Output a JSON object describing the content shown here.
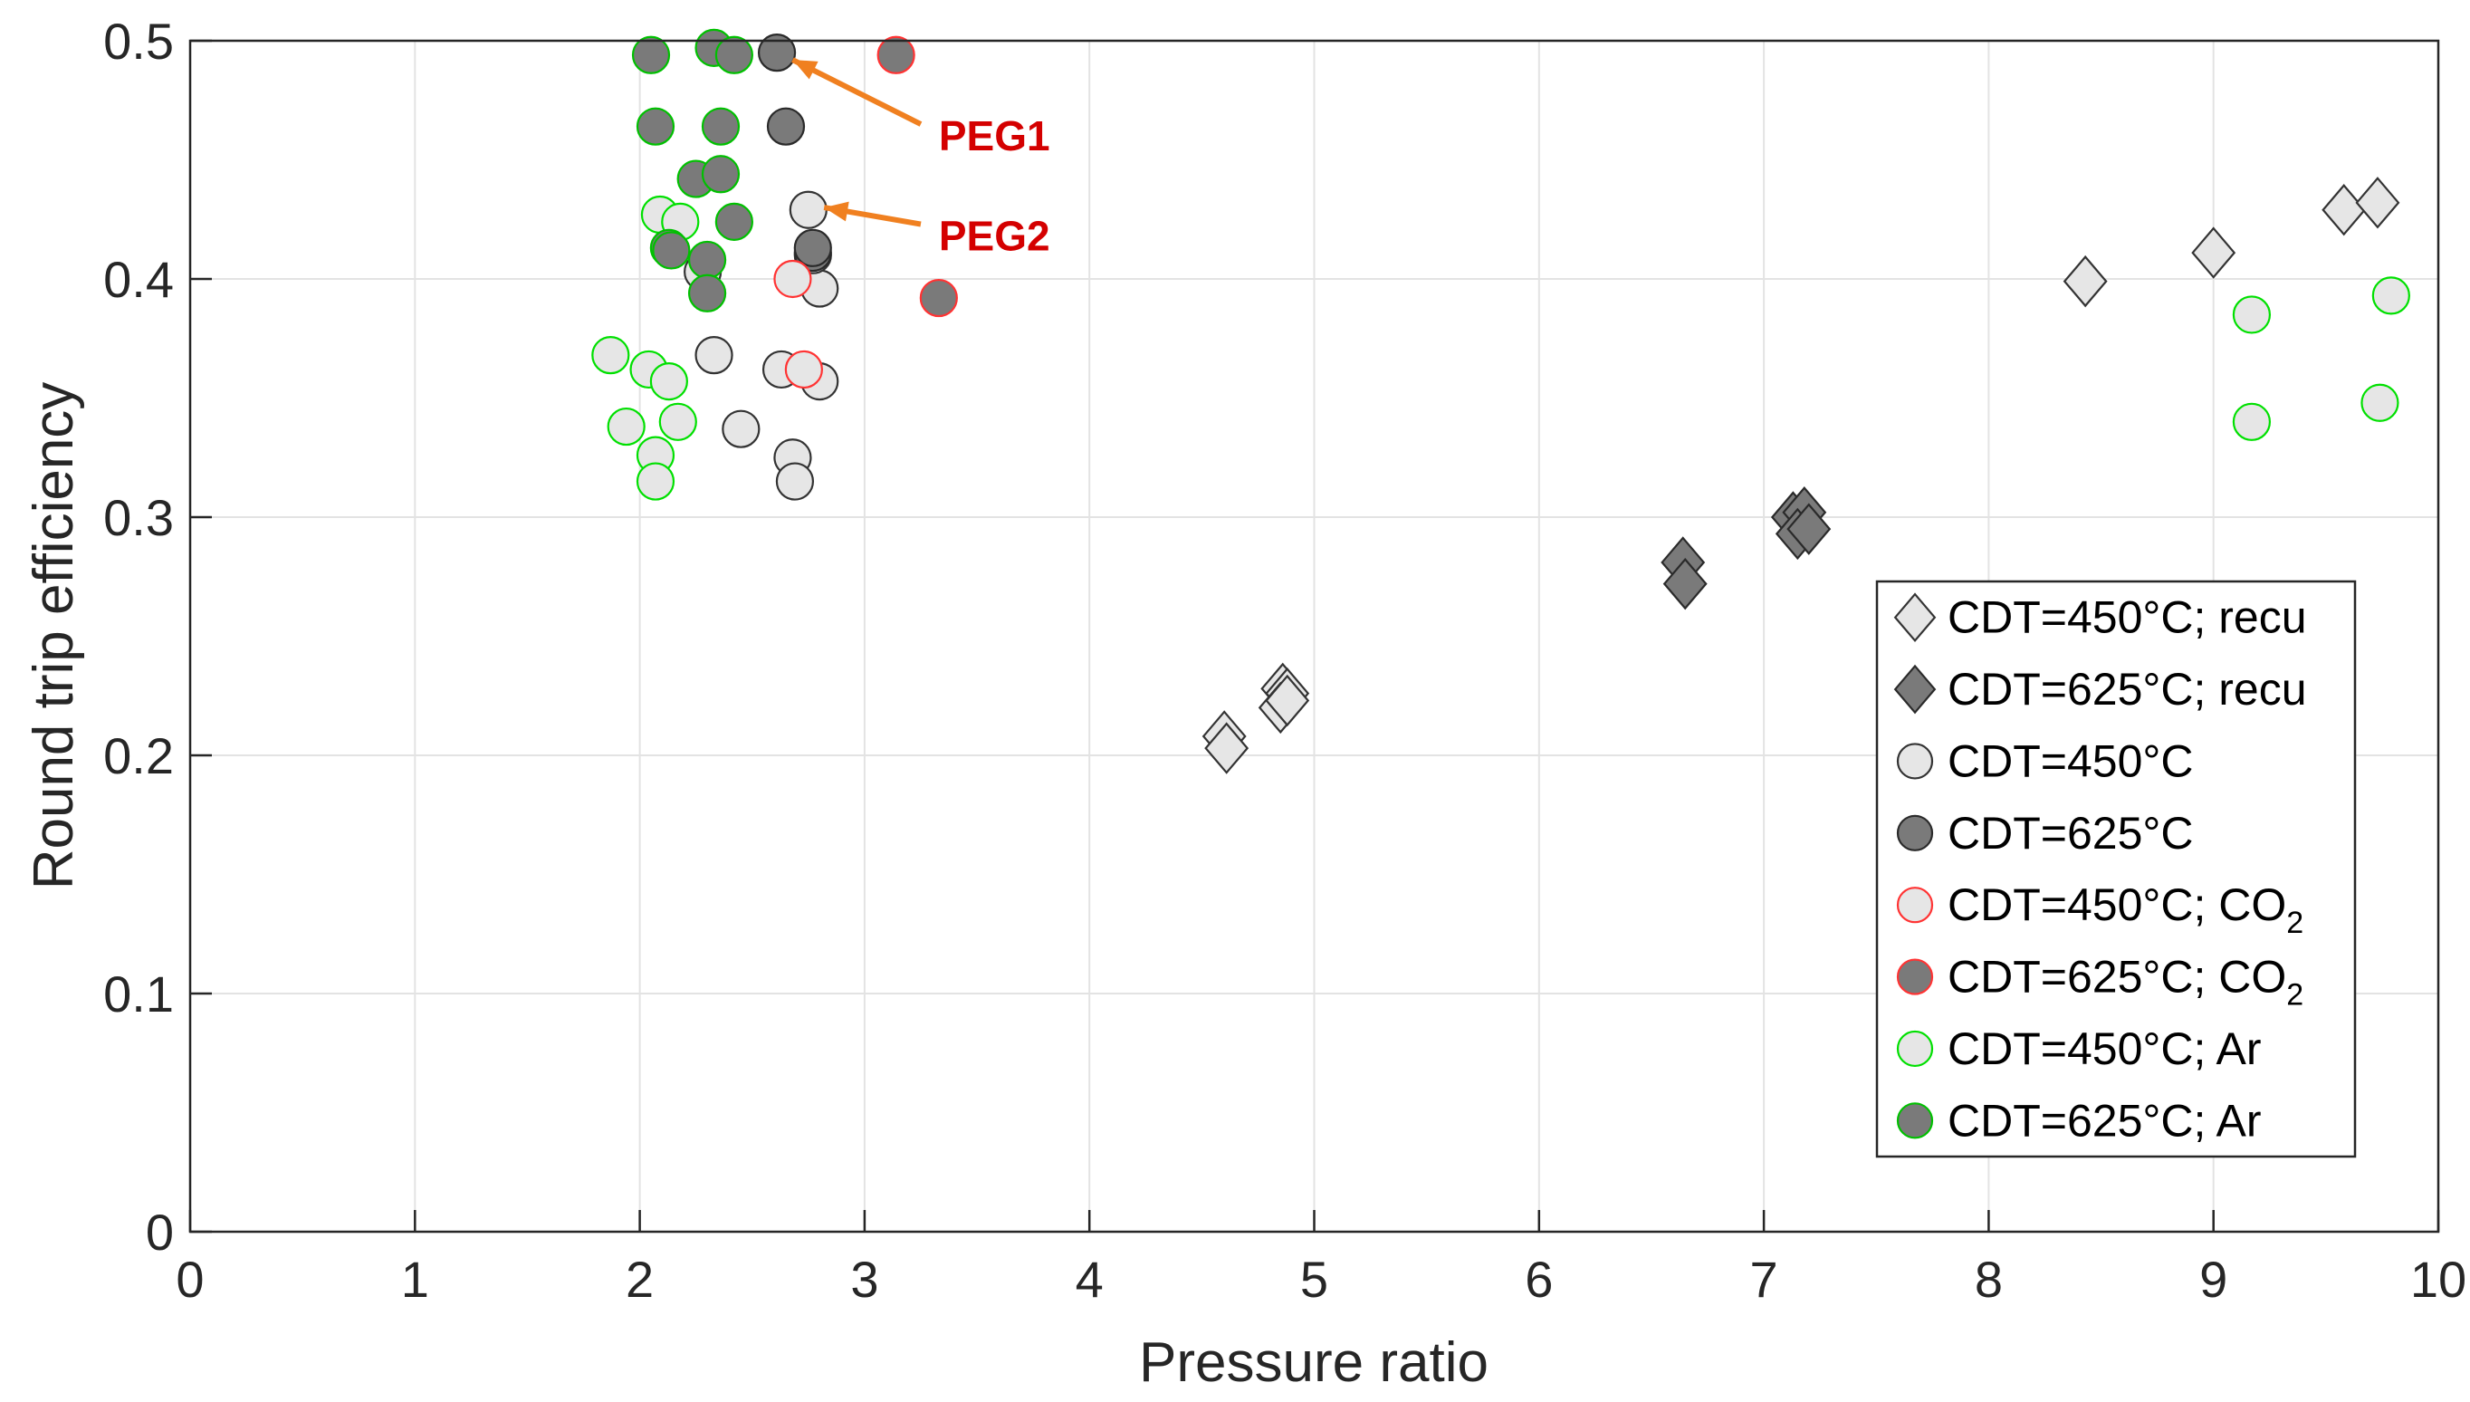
{
  "chart_data": {
    "type": "scatter",
    "title": "",
    "xlabel": "Pressure ratio",
    "ylabel": "Round trip efficiency",
    "xlim": [
      0,
      10
    ],
    "ylim": [
      0,
      0.5
    ],
    "xticks": [
      0,
      1,
      2,
      3,
      4,
      5,
      6,
      7,
      8,
      9,
      10
    ],
    "yticks": [
      0,
      0.1,
      0.2,
      0.3,
      0.4,
      0.5
    ],
    "xtick_labels": [
      "0",
      "1",
      "2",
      "3",
      "4",
      "5",
      "6",
      "7",
      "8",
      "9",
      "10"
    ],
    "ytick_labels": [
      "0",
      "0.1",
      "0.2",
      "0.3",
      "0.4",
      "0.5"
    ],
    "grid": true,
    "legend_position": "bottom-right",
    "series": [
      {
        "name": "CDT=450°C; recu",
        "label": "CDT=450°C; recu",
        "label_sub": "",
        "marker": "diamond",
        "fill": "#e6e6e6",
        "edge": "#333333",
        "points": [
          [
            4.6,
            0.208
          ],
          [
            4.61,
            0.203
          ],
          [
            4.86,
            0.228
          ],
          [
            4.88,
            0.226
          ],
          [
            4.85,
            0.22
          ],
          [
            4.88,
            0.223
          ],
          [
            8.43,
            0.399
          ],
          [
            9.0,
            0.411
          ],
          [
            9.58,
            0.429
          ],
          [
            9.73,
            0.432
          ]
        ]
      },
      {
        "name": "CDT=625°C; recu",
        "label": "CDT=625°C; recu",
        "label_sub": "",
        "marker": "diamond",
        "fill": "#7a7a7a",
        "edge": "#2a2a2a",
        "points": [
          [
            6.64,
            0.281
          ],
          [
            6.65,
            0.272
          ],
          [
            7.13,
            0.3
          ],
          [
            7.18,
            0.302
          ],
          [
            7.15,
            0.293
          ],
          [
            7.2,
            0.295
          ]
        ]
      },
      {
        "name": "CDT=450°C",
        "label": "CDT=450°C",
        "label_sub": "",
        "marker": "circle",
        "fill": "#e6e6e6",
        "edge": "#333333",
        "points": [
          [
            2.28,
            0.403
          ],
          [
            2.33,
            0.368
          ],
          [
            2.45,
            0.337
          ],
          [
            2.63,
            0.362
          ],
          [
            2.68,
            0.325
          ],
          [
            2.69,
            0.315
          ],
          [
            2.75,
            0.429
          ],
          [
            2.8,
            0.396
          ],
          [
            2.8,
            0.357
          ],
          [
            2.77,
            0.41
          ]
        ]
      },
      {
        "name": "CDT=625°C",
        "label": "CDT=625°C",
        "label_sub": "",
        "marker": "circle",
        "fill": "#7a7a7a",
        "edge": "#2a2a2a",
        "points": [
          [
            2.61,
            0.495
          ],
          [
            2.65,
            0.464
          ],
          [
            2.77,
            0.411
          ],
          [
            2.77,
            0.413
          ]
        ]
      },
      {
        "name": "CDT=450°C; CO2",
        "label": "CDT=450°C; CO",
        "label_sub": "2",
        "marker": "circle",
        "fill": "#e6e6e6",
        "edge": "#ff3333",
        "points": [
          [
            2.68,
            0.4
          ],
          [
            2.73,
            0.362
          ]
        ]
      },
      {
        "name": "CDT=625°C; CO2",
        "label": "CDT=625°C; CO",
        "label_sub": "2",
        "marker": "circle",
        "fill": "#7a7a7a",
        "edge": "#ff3333",
        "points": [
          [
            3.14,
            0.494
          ],
          [
            3.33,
            0.392
          ]
        ]
      },
      {
        "name": "CDT=450°C; Ar",
        "label": "CDT=450°C; Ar",
        "label_sub": "",
        "marker": "circle",
        "fill": "#e6e6e6",
        "edge": "#00e000",
        "points": [
          [
            1.87,
            0.368
          ],
          [
            1.94,
            0.338
          ],
          [
            2.04,
            0.362
          ],
          [
            2.07,
            0.326
          ],
          [
            2.07,
            0.315
          ],
          [
            2.09,
            0.427
          ],
          [
            2.13,
            0.357
          ],
          [
            2.17,
            0.34
          ],
          [
            2.18,
            0.424
          ],
          [
            9.17,
            0.385
          ],
          [
            9.17,
            0.34
          ],
          [
            9.74,
            0.348
          ],
          [
            9.79,
            0.393
          ]
        ]
      },
      {
        "name": "CDT=625°C; Ar",
        "label": "CDT=625°C; Ar",
        "label_sub": "",
        "marker": "circle",
        "fill": "#7a7a7a",
        "edge": "#00c000",
        "points": [
          [
            2.05,
            0.494
          ],
          [
            2.07,
            0.464
          ],
          [
            2.13,
            0.413
          ],
          [
            2.14,
            0.412
          ],
          [
            2.25,
            0.442
          ],
          [
            2.3,
            0.408
          ],
          [
            2.3,
            0.394
          ],
          [
            2.33,
            0.497
          ],
          [
            2.36,
            0.464
          ],
          [
            2.36,
            0.444
          ],
          [
            2.42,
            0.424
          ],
          [
            2.42,
            0.494
          ]
        ]
      }
    ],
    "annotations": [
      {
        "text": "PEG1",
        "color": "#d40000",
        "arrow_color": "#f08020",
        "arrow_to": [
          2.68,
          0.492
        ],
        "arrow_from": [
          3.25,
          0.465
        ],
        "text_at": [
          3.33,
          0.46
        ]
      },
      {
        "text": "PEG2",
        "color": "#d40000",
        "arrow_color": "#f08020",
        "arrow_to": [
          2.82,
          0.43
        ],
        "arrow_from": [
          3.25,
          0.423
        ],
        "text_at": [
          3.33,
          0.418
        ]
      }
    ]
  }
}
